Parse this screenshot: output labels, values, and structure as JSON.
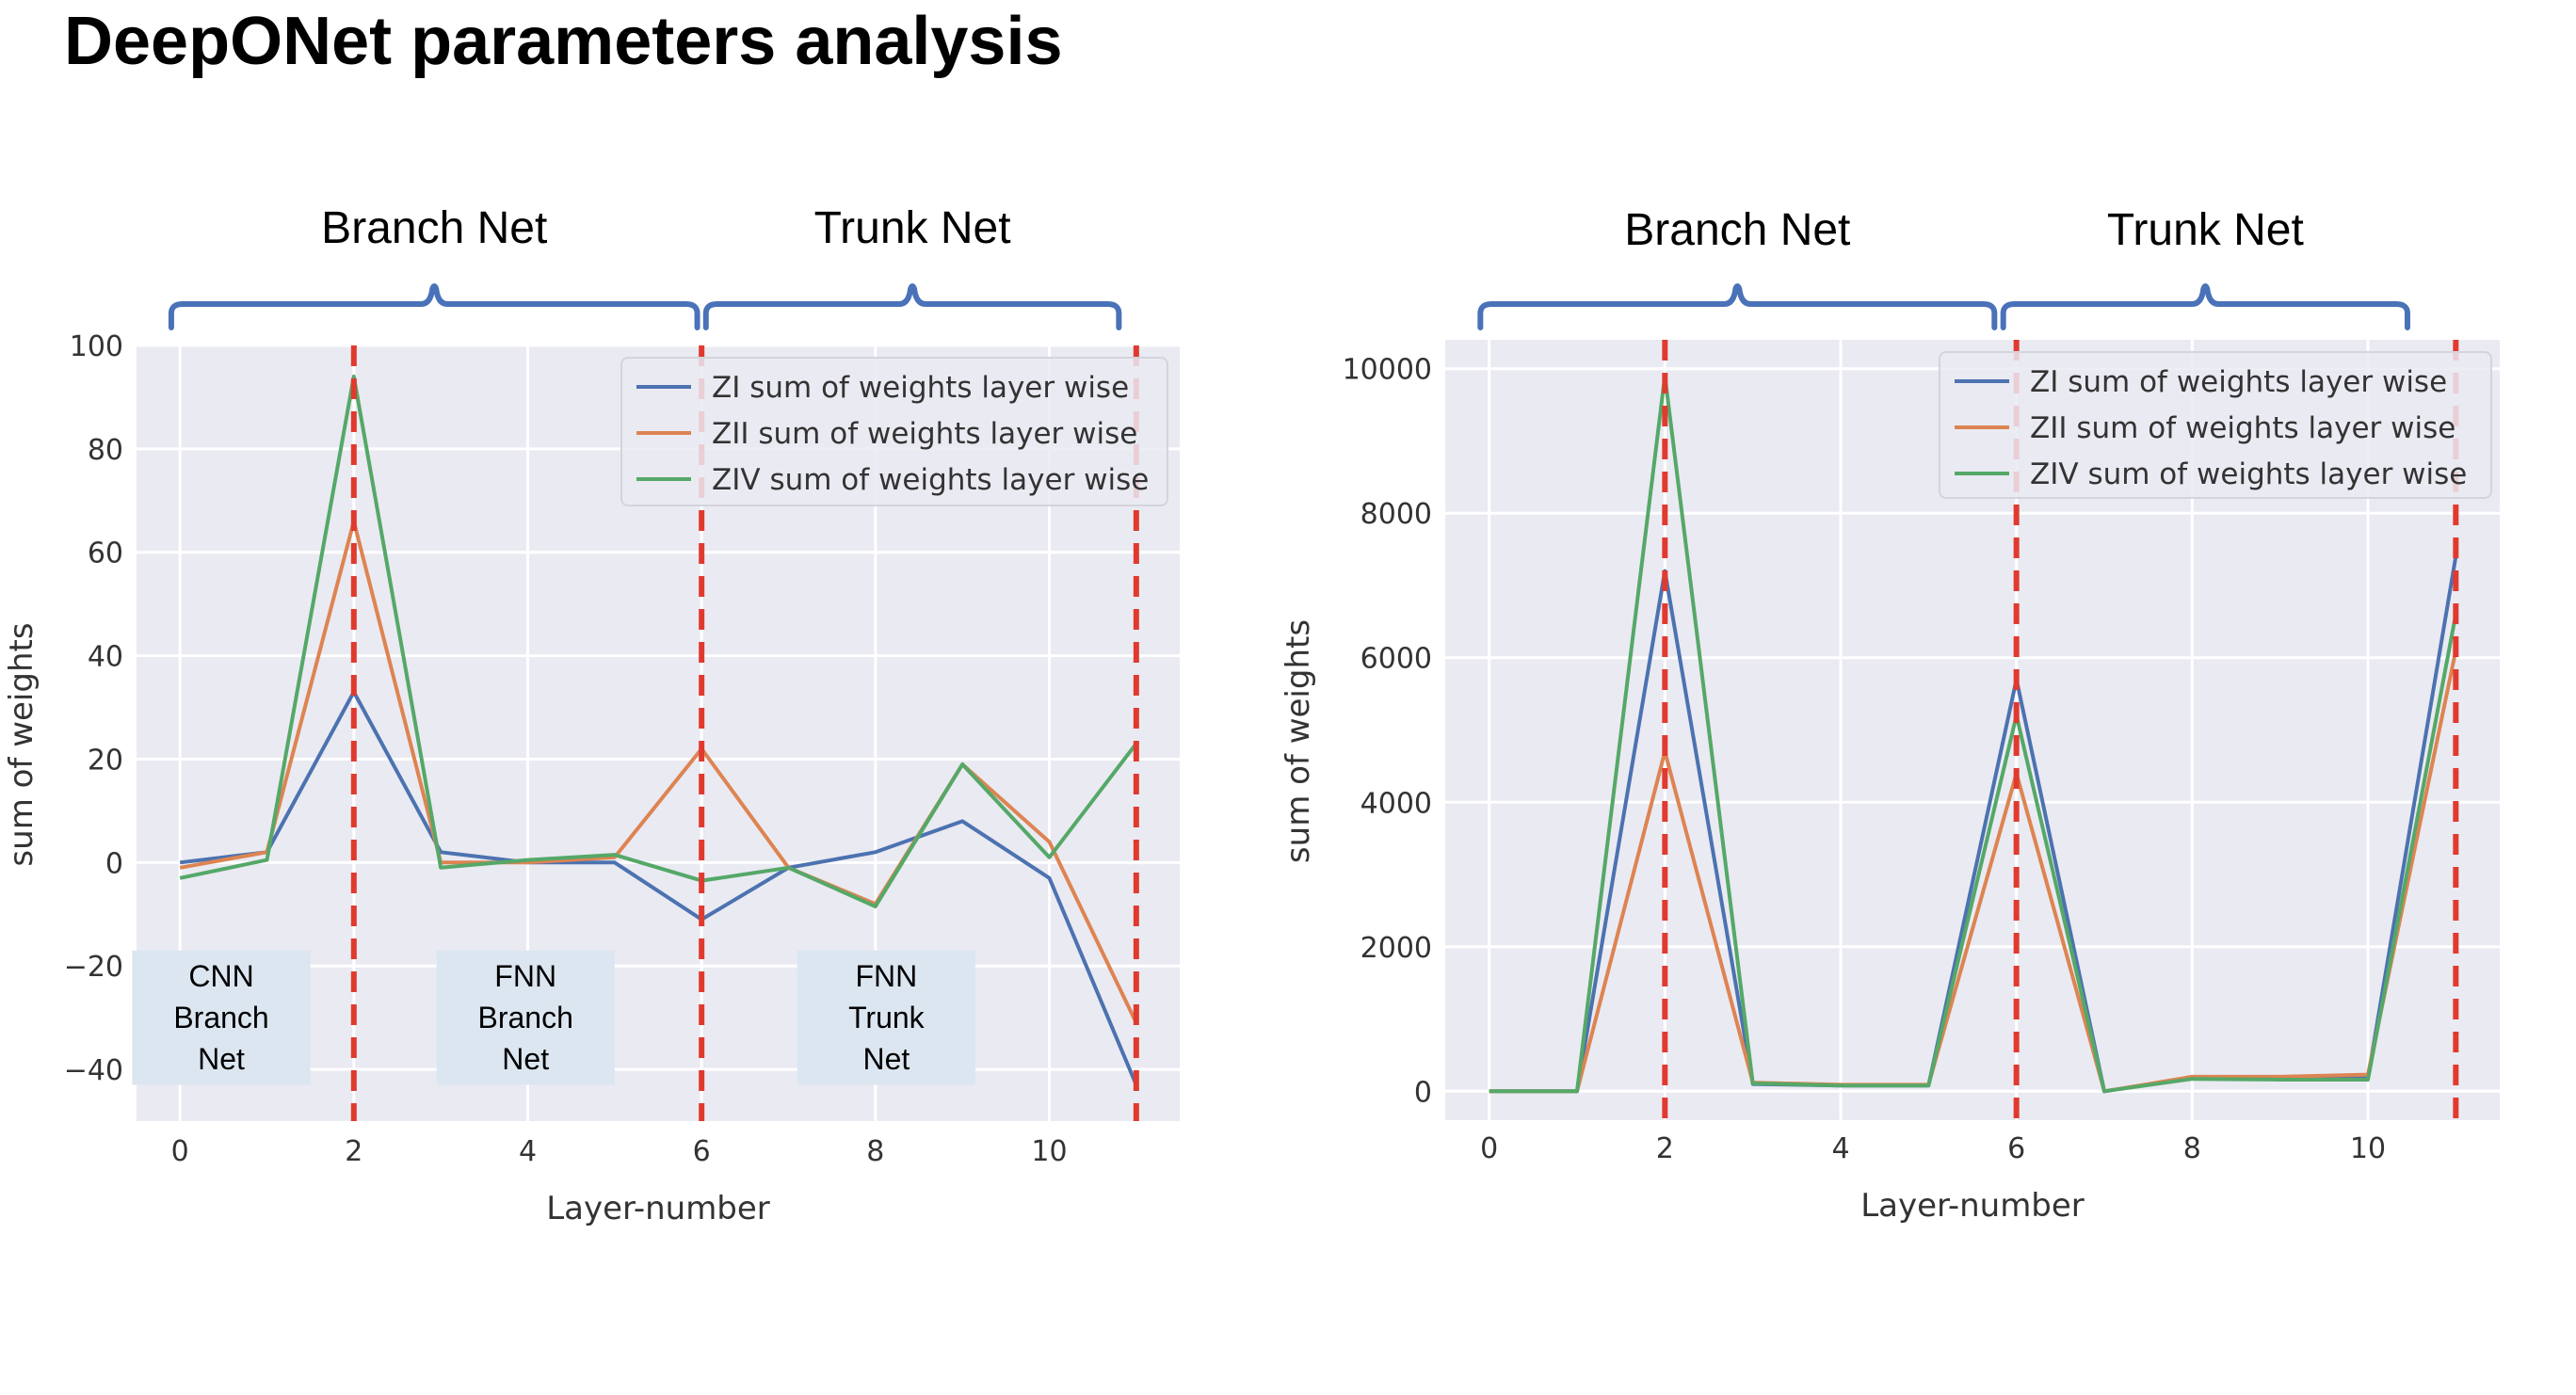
{
  "page": {
    "title": "DeepONet parameters analysis"
  },
  "colors": {
    "zi": "#4c72b0",
    "zii": "#dd8452",
    "ziv": "#55a868",
    "marker": "#e03a2f",
    "bracket": "#4a72b8",
    "plot_bg": "#eaeaf2",
    "region_box": "#dce6f1"
  },
  "chart_data": [
    {
      "type": "line",
      "xlabel": "Layer-number",
      "ylabel": "sum of weights",
      "xlim": [
        -0.5,
        11.5
      ],
      "ylim": [
        -50,
        100
      ],
      "xticks": [
        0,
        2,
        4,
        6,
        8,
        10
      ],
      "xtick_labels": [
        "0",
        "2",
        "4",
        "6",
        "8",
        "10"
      ],
      "yticks": [
        -40,
        -20,
        0,
        20,
        40,
        60,
        80,
        100
      ],
      "ytick_labels": [
        "−40",
        "−20",
        "0",
        "20",
        "40",
        "60",
        "80",
        "100"
      ],
      "grid": true,
      "legend_position": "top-right",
      "x": [
        0,
        1,
        2,
        3,
        4,
        5,
        6,
        7,
        8,
        9,
        10,
        11
      ],
      "series": [
        {
          "name": "ZI sum of weights layer wise",
          "color_key": "zi",
          "values": [
            0,
            2,
            33,
            2,
            0,
            0,
            -11,
            -1,
            2,
            8,
            -3,
            -43
          ]
        },
        {
          "name": "ZII sum of weights layer wise",
          "color_key": "zii",
          "values": [
            -1,
            2,
            66,
            0,
            0,
            1,
            22,
            -1,
            -8,
            19,
            4,
            -31
          ]
        },
        {
          "name": "ZIV sum of weights layer wise",
          "color_key": "ziv",
          "values": [
            -3,
            0.5,
            94,
            -1,
            0.5,
            1.5,
            -3.5,
            -1,
            -8.5,
            19,
            1,
            23
          ]
        }
      ],
      "vertical_markers": [
        2,
        6,
        11
      ],
      "brackets": [
        {
          "label": "Branch Net",
          "x_from": -0.1,
          "x_to": 5.95
        },
        {
          "label": "Trunk Net",
          "x_from": 6.05,
          "x_to": 10.8
        }
      ],
      "region_boxes": [
        {
          "lines": [
            "CNN",
            "Branch",
            "Net"
          ],
          "x_from": -0.55,
          "x_to": 1.5,
          "y_from": -43,
          "y_to": -17
        },
        {
          "lines": [
            "FNN",
            "Branch",
            "Net"
          ],
          "x_from": 2.95,
          "x_to": 5.0,
          "y_from": -43,
          "y_to": -17
        },
        {
          "lines": [
            "FNN",
            "Trunk",
            "Net"
          ],
          "x_from": 7.1,
          "x_to": 9.15,
          "y_from": -43,
          "y_to": -17
        }
      ]
    },
    {
      "type": "line",
      "xlabel": "Layer-number",
      "ylabel": "sum of weights",
      "xlim": [
        -0.5,
        11.5
      ],
      "ylim": [
        -400,
        10400
      ],
      "xticks": [
        0,
        2,
        4,
        6,
        8,
        10
      ],
      "xtick_labels": [
        "0",
        "2",
        "4",
        "6",
        "8",
        "10"
      ],
      "yticks": [
        0,
        2000,
        4000,
        6000,
        8000,
        10000
      ],
      "ytick_labels": [
        "0",
        "2000",
        "4000",
        "6000",
        "8000",
        "10000"
      ],
      "grid": true,
      "legend_position": "top-right",
      "x": [
        0,
        1,
        2,
        3,
        4,
        5,
        6,
        7,
        8,
        9,
        10,
        11
      ],
      "series": [
        {
          "name": "ZI sum of weights layer wise",
          "color_key": "zi",
          "values": [
            0,
            0,
            7200,
            100,
            80,
            80,
            5700,
            0,
            180,
            170,
            180,
            7400
          ]
        },
        {
          "name": "ZII sum of weights layer wise",
          "color_key": "zii",
          "values": [
            0,
            0,
            4700,
            120,
            90,
            90,
            4400,
            0,
            200,
            200,
            230,
            6100
          ]
        },
        {
          "name": "ZIV sum of weights layer wise",
          "color_key": "ziv",
          "values": [
            0,
            0,
            9900,
            110,
            80,
            80,
            5200,
            0,
            170,
            160,
            160,
            6600
          ]
        }
      ],
      "vertical_markers": [
        2,
        6,
        11
      ],
      "brackets": [
        {
          "label": "Branch Net",
          "x_from": -0.1,
          "x_to": 5.75
        },
        {
          "label": "Trunk Net",
          "x_from": 5.85,
          "x_to": 10.45
        }
      ],
      "region_boxes": []
    }
  ]
}
